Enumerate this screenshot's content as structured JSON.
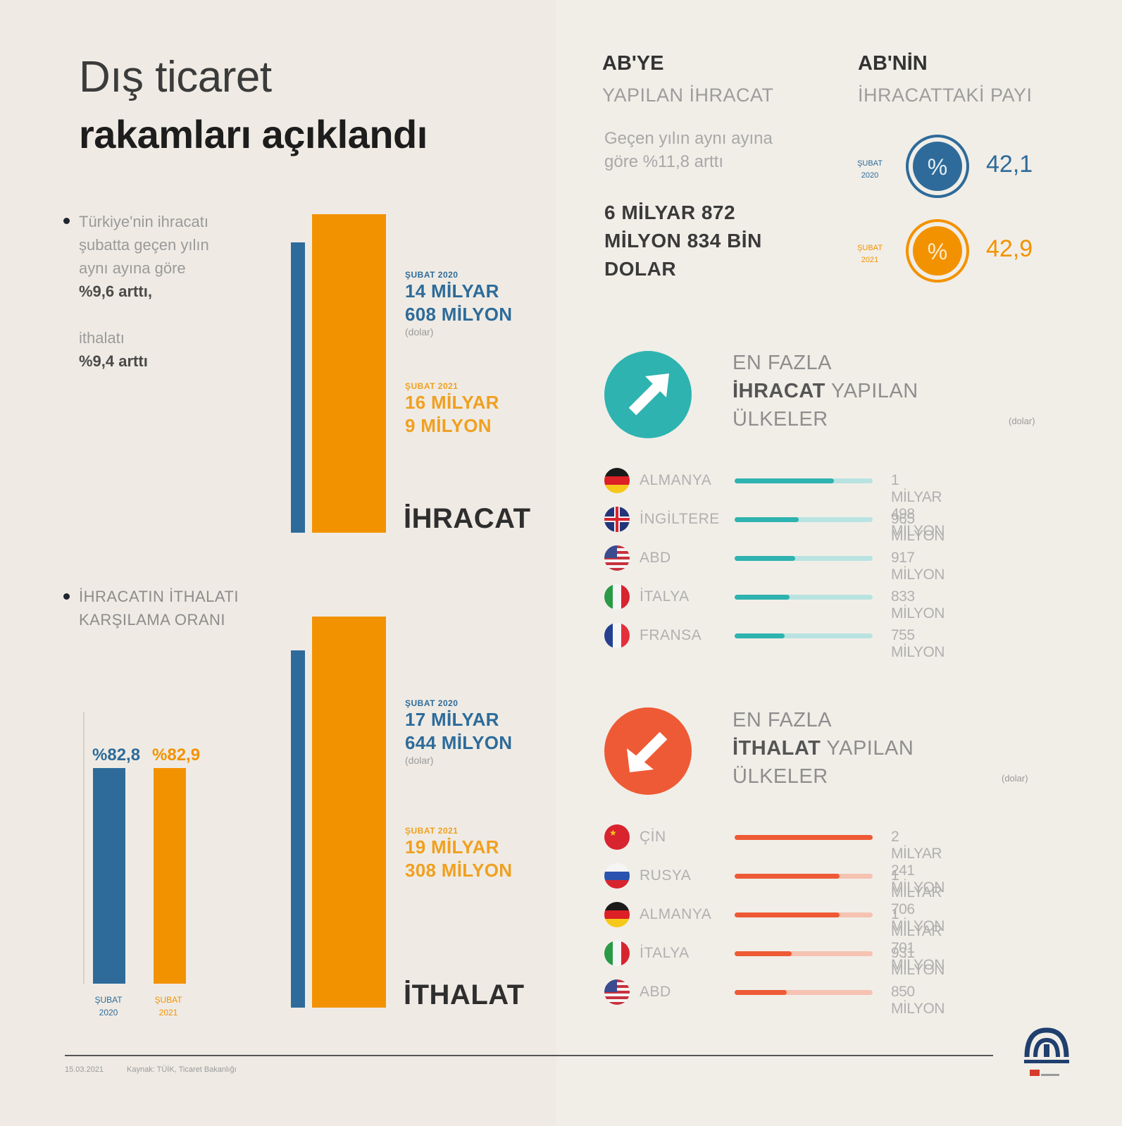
{
  "title": {
    "line1": "Dış ticaret",
    "line2": "rakamları açıklandı"
  },
  "intro": {
    "text1": "Türkiye'nin ihracatı şubatta geçen yılın aynı ayına göre",
    "pct1": "%9,6 arttı,",
    "text2": "ithalatı",
    "pct2": "%9,4 arttı"
  },
  "coverage_title": "İHRACATIN İTHALATI KARŞILAMA ORANI",
  "colors": {
    "blue": "#2e6b9a",
    "orange": "#f39200",
    "teal": "#2eb3b0",
    "red": "#ee5a35"
  },
  "export_block": {
    "label": "İHRACAT",
    "p1_label": "ŞUBAT 2020",
    "p1_line1": "14 MİLYAR",
    "p1_line2": "608 MİLYON",
    "unit": "(dolar)",
    "p2_label": "ŞUBAT 2021",
    "p2_line1": "16 MİLYAR",
    "p2_line2": "9 MİLYON"
  },
  "import_block": {
    "label": "İTHALAT",
    "p1_label": "ŞUBAT 2020",
    "p1_line1": "17 MİLYAR",
    "p1_line2": "644 MİLYON",
    "unit": "(dolar)",
    "p2_label": "ŞUBAT 2021",
    "p2_line1": "19 MİLYAR",
    "p2_line2": "308 MİLYON"
  },
  "coverage": {
    "bar1_label": "%82,8",
    "bar1_p1": "ŞUBAT",
    "bar1_p2": "2020",
    "bar2_label": "%82,9",
    "bar2_p1": "ŞUBAT",
    "bar2_p2": "2021"
  },
  "eu_exports": {
    "head": "AB'YE",
    "sub": "YAPILAN İHRACAT",
    "desc_line1": "Geçen yılın aynı ayına",
    "desc_line2": "göre %11,8 arttı",
    "val_line1": "6 MİLYAR 872",
    "val_line2": "MİLYON 834 BİN",
    "val_line3": "DOLAR"
  },
  "eu_share": {
    "head": "AB'NİN",
    "sub": "İHRACATTAKİ PAYI",
    "c1_p1": "ŞUBAT",
    "c1_p2": "2020",
    "c1_value": "42,1",
    "c2_p1": "ŞUBAT",
    "c2_p2": "2021",
    "c2_value": "42,9",
    "percent_icon": "%"
  },
  "top_exports": {
    "line1": "EN FAZLA",
    "line2_bold": "İHRACAT",
    "line2_rest": " YAPILAN",
    "line3": "ÜLKELER",
    "unit": "(dolar)",
    "icon": "arrow-up-right-icon"
  },
  "top_imports": {
    "line1": "EN FAZLA",
    "line2_bold": "İTHALAT",
    "line2_rest": " YAPILAN",
    "line3": "ÜLKELER",
    "unit": "(dolar)",
    "icon": "arrow-down-left-icon"
  },
  "footer": {
    "date": "15.03.2021",
    "source": "Kaynak: TÜİK, Ticaret Bakanlığı"
  },
  "chart_data": [
    {
      "type": "bar",
      "categories": [
        "ŞUBAT 2020",
        "ŞUBAT 2021"
      ],
      "series": [
        {
          "name": "İHRACAT",
          "values": [
            14.608,
            16.009
          ]
        }
      ]
    },
    {
      "type": "bar",
      "categories": [
        "ŞUBAT 2020",
        "ŞUBAT 2021"
      ],
      "series": [
        {
          "name": "İTHALAT",
          "values": [
            17.644,
            19.308
          ]
        }
      ]
    },
    {
      "type": "bar",
      "categories": [
        "ŞUBAT 2020",
        "ŞUBAT 2021"
      ],
      "values": [
        82.8,
        82.9
      ]
    },
    {
      "type": "bar",
      "categories": [
        "ALMANYA",
        "İNGİLTERE",
        "ABD",
        "İTALYA",
        "FRANSA"
      ],
      "values": [
        1498,
        965,
        917,
        833,
        755
      ],
      "value_labels": [
        "1 MİLYAR 498 MİLYON",
        "965 MİLYON",
        "917 MİLYON",
        "833 MİLYON",
        "755 MİLYON"
      ],
      "flags": [
        "de",
        "gb",
        "us",
        "it",
        "fr"
      ]
    },
    {
      "type": "bar",
      "categories": [
        "ÇİN",
        "RUSYA",
        "ALMANYA",
        "İTALYA",
        "ABD"
      ],
      "values": [
        2241,
        1706,
        1701,
        931,
        850
      ],
      "value_labels": [
        "2 MİLYAR 241 MİLYON",
        "1 MİLYAR 706 MİLYON",
        "1 MİLYAR 701 MİLYON",
        "931 MİLYON",
        "850 MİLYON"
      ],
      "flags": [
        "cn",
        "ru",
        "de",
        "it",
        "us"
      ]
    }
  ]
}
